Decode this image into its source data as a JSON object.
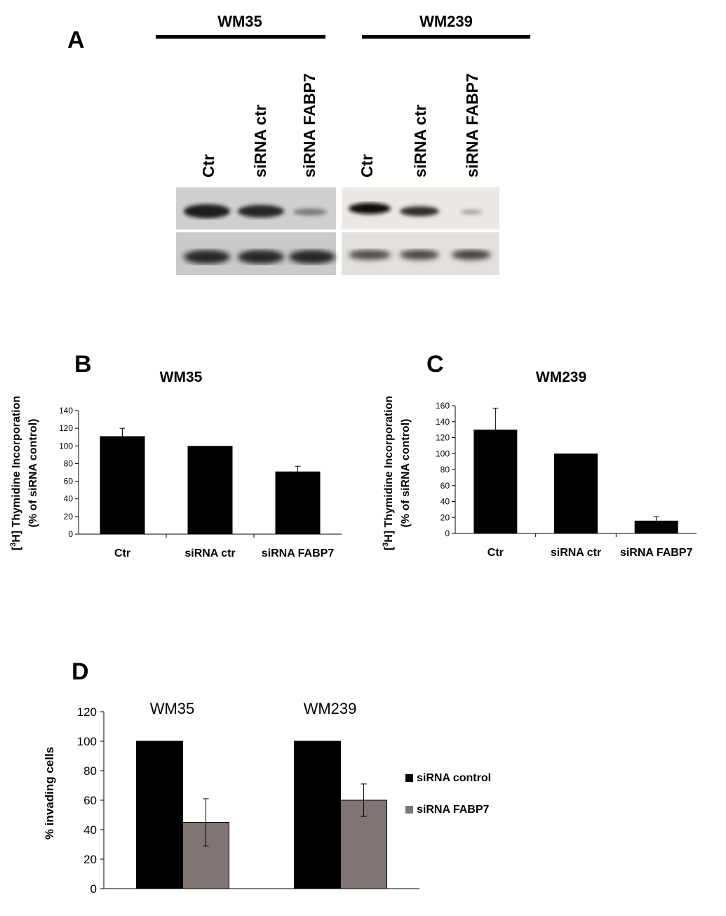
{
  "panels": {
    "a": {
      "letter": "A",
      "groups": [
        {
          "name": "WM35",
          "lanes": [
            "Ctr",
            "siRNA ctr",
            "siRNA FABP7"
          ]
        },
        {
          "name": "WM239",
          "lanes": [
            "Ctr",
            "siRNA ctr",
            "siRNA FABP7"
          ]
        }
      ],
      "colors": {
        "blot_left": "#cfcfcf",
        "blot_right": "#ebe8e6",
        "band": "#1a1a1a"
      }
    },
    "b": {
      "letter": "B"
    },
    "c": {
      "letter": "C"
    },
    "d": {
      "letter": "D"
    }
  },
  "chart_data": [
    {
      "id": "b",
      "type": "bar",
      "title": "WM35",
      "ylabel_line1": "[3H] Thymidine Incorporation",
      "ylabel_sup": "3",
      "ylabel_line2": "(% of siRNA control)",
      "categories": [
        "Ctr",
        "siRNA ctr",
        "siRNA  FABP7"
      ],
      "values": [
        111,
        100,
        71
      ],
      "errors": [
        9,
        0,
        6
      ],
      "ylim": [
        0,
        140
      ],
      "yticks": [
        0,
        20,
        40,
        60,
        80,
        100,
        120,
        140
      ],
      "color": "#000000"
    },
    {
      "id": "c",
      "type": "bar",
      "title": "WM239",
      "ylabel_line1": "[3H] Thymidine Incorporation",
      "ylabel_sup": "3",
      "ylabel_line2": "(% of siRNA control)",
      "categories": [
        "Ctr",
        "siRNA ctr",
        "siRNA FABP7"
      ],
      "values": [
        130,
        100,
        16
      ],
      "errors": [
        27,
        0,
        5
      ],
      "ylim": [
        0,
        160
      ],
      "yticks": [
        0,
        20,
        40,
        60,
        80,
        100,
        120,
        140,
        160
      ],
      "color": "#000000"
    },
    {
      "id": "d",
      "type": "bar",
      "ylabel": "% invading cells",
      "categories": [
        "WM35",
        "WM239"
      ],
      "series": [
        {
          "name": "siRNA control",
          "values": [
            100,
            100
          ],
          "errors": [
            0,
            0
          ],
          "color": "#000000"
        },
        {
          "name": "siRNA FABP7",
          "values": [
            45,
            60
          ],
          "errors": [
            16,
            11
          ],
          "color": "#7f7572"
        }
      ],
      "ylim": [
        0,
        120
      ],
      "yticks": [
        0,
        20,
        40,
        60,
        80,
        100,
        120
      ],
      "legend": "right"
    }
  ]
}
